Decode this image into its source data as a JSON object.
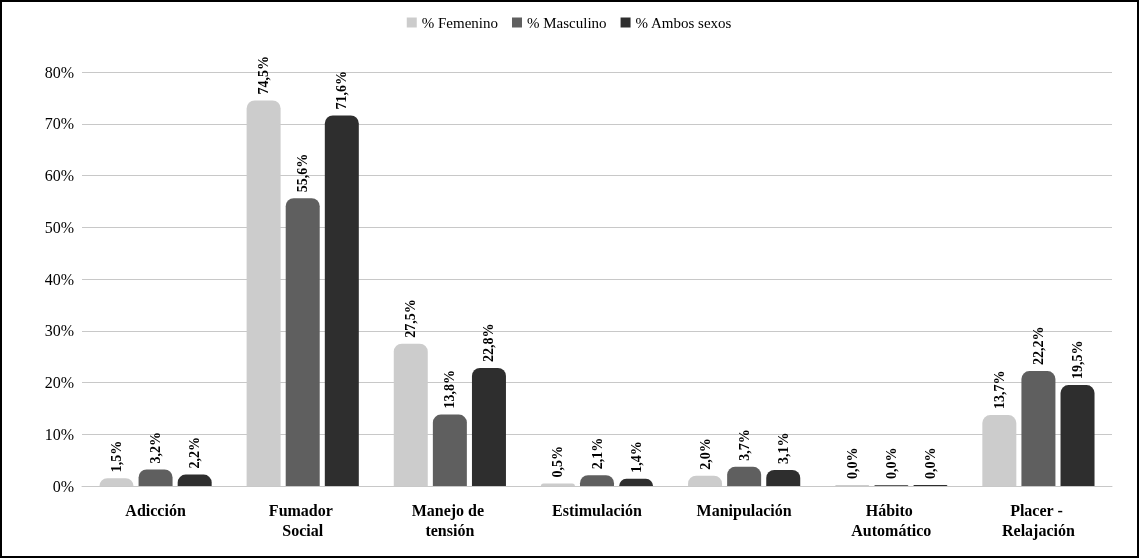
{
  "chart_data": {
    "type": "bar",
    "categories": [
      "Adicción",
      "Fumador Social",
      "Manejo de tensión",
      "Estimulación",
      "Manipulación",
      "Hábito Automático",
      "Placer - Relajación"
    ],
    "series": [
      {
        "name": "% Femenino",
        "color": "#cccccc",
        "values": [
          1.5,
          74.5,
          27.5,
          0.5,
          2.0,
          0.0,
          13.7
        ],
        "value_labels": [
          "1,5%",
          "74,5%",
          "27,5%",
          "0,5%",
          "2,0%",
          "0,0%",
          "13,7%"
        ]
      },
      {
        "name": "% Masculino",
        "color": "#5f5f5f",
        "values": [
          3.2,
          55.6,
          13.8,
          2.1,
          3.7,
          0.0,
          22.2
        ],
        "value_labels": [
          "3,2%",
          "55,6%",
          "13,8%",
          "2,1%",
          "3,7%",
          "0,0%",
          "22,2%"
        ]
      },
      {
        "name": "% Ambos sexos",
        "color": "#2e2e2e",
        "values": [
          2.2,
          71.6,
          22.8,
          1.4,
          3.1,
          0.0,
          19.5
        ],
        "value_labels": [
          "2,2%",
          "71,6%",
          "22,8%",
          "1,4%",
          "3,1%",
          "0,0%",
          "19,5%"
        ]
      }
    ],
    "ylim": [
      0,
      80
    ],
    "yticks": [
      {
        "value": 0,
        "label": "0%"
      },
      {
        "value": 10,
        "label": "10%"
      },
      {
        "value": 20,
        "label": "20%"
      },
      {
        "value": 30,
        "label": "30%"
      },
      {
        "value": 40,
        "label": "40%"
      },
      {
        "value": 50,
        "label": "50%"
      },
      {
        "value": 60,
        "label": "60%"
      },
      {
        "value": 70,
        "label": "70%"
      },
      {
        "value": 80,
        "label": "80%"
      }
    ],
    "grid": "y",
    "legend": "top"
  }
}
